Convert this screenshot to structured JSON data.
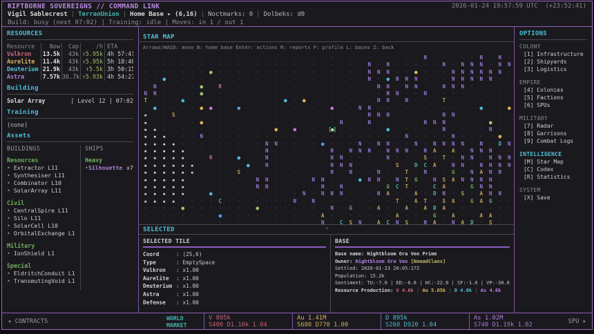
{
  "meta": {
    "title": "RIFTBORNE SOVEREIGNS // COMMAND LINK",
    "clock": "2026-01-24 19:57:59 UTC",
    "offset": "(+23:52:41)",
    "sep": "|"
  },
  "status": {
    "player": "Vigil Sablecrest",
    "faction": "TerranUnion",
    "location": "Home Base ▸ (6,16)",
    "noctmarks": "Noctmarks: 0",
    "dolbeks": "Dolbeks: d0",
    "line3": "Build: busy (next 07:02) | Training: idle | Moves: in 1 / out 1"
  },
  "resources": {
    "title": "RESOURCES",
    "headers": {
      "name": "Resource",
      "now": "Now",
      "cap": "Cap",
      "rate": "/h",
      "eta": "ETA"
    },
    "rows": [
      {
        "name": "Vulkron",
        "now": "13.5k",
        "cap": "43k",
        "rate": "↑5.95k",
        "eta": "4h 57:41",
        "color": "#c9687a"
      },
      {
        "name": "Aurelite",
        "now": "11.4k",
        "cap": "43k",
        "rate": "↑5.95k",
        "eta": "5h 18:40",
        "color": "#d7b45f"
      },
      {
        "name": "Deuterium",
        "now": "21.9k",
        "cap": "43k",
        "rate": "↑5.5k",
        "eta": "3h 50:15",
        "color": "#55bcd9"
      },
      {
        "name": "Astra",
        "now": "7.57k",
        "cap": "36.7k",
        "rate": "↑5.93k",
        "eta": "4h 54:27",
        "color": "#b27fe0"
      }
    ]
  },
  "building": {
    "title": "Building",
    "name": "Solar Array",
    "info": "| Level 12 | 07:02"
  },
  "training": {
    "title": "Training",
    "entry": "(none)"
  },
  "assets": {
    "title": "Assets",
    "buildings": {
      "title": "BUILDINGS",
      "groups": [
        {
          "name": "Resources",
          "items": [
            "Extractor L11",
            "Synthesiser L11",
            "Combinator L10",
            "SolarArray L11"
          ]
        },
        {
          "name": "Civil",
          "items": [
            "CentralSpire L11",
            "Silo L11",
            "SolarCell L10",
            "OrbitalExchange L1"
          ]
        },
        {
          "name": "Military",
          "items": [
            "IonShield L1"
          ]
        },
        {
          "name": "Special",
          "items": [
            "EldritchConduit L1",
            "TransmutingVoid L1"
          ]
        }
      ]
    },
    "ships": {
      "title": "SHIPS",
      "groups": [
        {
          "name": "Heavy",
          "items": [
            {
              "name": "Silhouette",
              "count": "x7"
            }
          ]
        }
      ]
    }
  },
  "starmap": {
    "title": "STAR MAP",
    "help": "Arrows/WASD: move  B: home base  Enter: actions  R: reports  P: profile  L: bases  Z: back",
    "rows": [
      "....................`.........N.....N.N.",
      "........................N.N.....N.NNN.NN.",
      ".......g................NNN..y...NNNNNN.N.",
      "..o.....................N.oNNN...NNNNN....",
      ".N....g.R................NN.NN..NNN.......",
      "NN....g...................NN..N...........",
      "T...o..........o.y.......NN.N...T.........",
      ".o....yp..b.........p..NN...........o..y",
      "#..S....................NNN.....NN........",
      "#.....y..............N..N.....NNN....g..",
      "##............y.p...X.....o.....N....N..",
      "###...N.....................N....N....y",
      "####.........NN....b...N.NN..N.NNNN.N.DN",
      "#####........N......N.NNN.NNN.NA.A.NNN",
      "#####..R..o..N......NN....N...S.T.NN.NNN",
      "######.....o.N......NNN....S.DCA.NN.NNNN",
      "######....S.........N.N..N..T.N..G.NANN.",
      "#####.......NN....NN...oNN.NTG.NSANNNN.",
      "#####.......NN.....N.N....GCT..CA..GNN.",
      "#####..o.........N.NNN...NA..A.DN.S.ANN.",
      "####....C.......N.N........T.AT.SA.GAG..",
      "....g.......g.......N.G..A..A.ADA...",
      "........b..........A.......A...G.A..AA..",
      "...................N.CSN.ACNS.NA.NAD.S.."
    ],
    "legend": {
      ".": {
        "ch": "·",
        "color": "#3c3c46"
      },
      "`": {
        "ch": "·",
        "color": "#55555f"
      },
      "N": {
        "ch": "N",
        "color": "#9b79d6"
      },
      "R": {
        "ch": "R",
        "color": "#c4707e"
      },
      "T": {
        "ch": "T",
        "color": "#c3a35f"
      },
      "S": {
        "ch": "S",
        "color": "#c3a35f"
      },
      "A": {
        "ch": "A",
        "color": "#c3a35f"
      },
      "C": {
        "ch": "C",
        "color": "#52b8ae"
      },
      "D": {
        "ch": "D",
        "color": "#52b8ae"
      },
      "G": {
        "ch": "G",
        "color": "#6fae5f"
      },
      "#": {
        "ch": "▪",
        "color": "#d6d6d8"
      },
      "o": {
        "ch": "●",
        "color": "#4db8d8"
      },
      "g": {
        "ch": "●",
        "color": "#9ac873"
      },
      "y": {
        "ch": "●",
        "color": "#e0b359"
      },
      "p": {
        "ch": "●",
        "color": "#c873d8"
      },
      "b": {
        "ch": "●",
        "color": "#5b9be0"
      },
      "X": {
        "ch": "●",
        "color": "#cde07a",
        "brackets": "#4fc6c0"
      }
    }
  },
  "selected": {
    "title": "SELECTED",
    "spinner": "*",
    "tile": {
      "title": "SELECTED TILE",
      "fields": [
        {
          "k": "Coord",
          "v": ": (25,6)"
        },
        {
          "k": "Type",
          "v": ": EmptySpace"
        },
        {
          "k": "Vulkron",
          "v": ": x1.00"
        },
        {
          "k": "Aurelite",
          "v": ": x1.00"
        },
        {
          "k": "Deuterium",
          "v": ": x1.00"
        },
        {
          "k": "Astra",
          "v": ": x1.00"
        },
        {
          "k": "Defense",
          "v": ": x1.00"
        }
      ]
    },
    "base": {
      "title": "BASE",
      "name_label": "Base name:",
      "name": "Nightbloom Ora Ven Prime",
      "owner_label": "Owner:",
      "owner": "Nightbloom Ora Ven",
      "clan": "[NomadClans]",
      "settled": "Settled: 2026-01-23 20:05:17Z",
      "population": "Population: 15.2k",
      "sentiment": "Sentiment: TU:-7.0 | ED:-6.6 | HC:-22.0 | SF:-1.0 | VP:-30.0",
      "production_label": "Resource Production:",
      "production": [
        {
          "t": "V 4.6k",
          "color": "#c9687a"
        },
        {
          "t": "Au 5.05k",
          "color": "#d7b45f"
        },
        {
          "t": "D 4.6k",
          "color": "#55bcd9"
        },
        {
          "t": "As 4.6k",
          "color": "#b27fe0"
        }
      ]
    }
  },
  "options": {
    "title": "OPTIONS",
    "groups": [
      {
        "name": "COLONY",
        "accent": false,
        "items": [
          {
            "key": "[1]",
            "label": "Infrastructure"
          },
          {
            "key": "[2]",
            "label": "Shipyards"
          },
          {
            "key": "[3]",
            "label": "Logistics"
          }
        ]
      },
      {
        "name": "EMPIRE",
        "accent": false,
        "items": [
          {
            "key": "[4]",
            "label": "Colonies"
          },
          {
            "key": "[5]",
            "label": "Factions"
          },
          {
            "key": "[6]",
            "label": "SPUs"
          }
        ]
      },
      {
        "name": "MILITARY",
        "accent": false,
        "items": [
          {
            "key": "[7]",
            "label": "Radar"
          },
          {
            "key": "[8]",
            "label": "Garrisons"
          },
          {
            "key": "[9]",
            "label": "Combat Logs"
          }
        ]
      },
      {
        "name": "INTELLIGENCE",
        "accent": true,
        "items": [
          {
            "key": "[M]",
            "label": "Star Map"
          },
          {
            "key": "[C]",
            "label": "Codex"
          },
          {
            "key": "[R]",
            "label": "Statistics"
          }
        ]
      },
      {
        "name": "SYSTEM",
        "accent": false,
        "items": [
          {
            "key": "[X]",
            "label": "Save"
          }
        ]
      }
    ]
  },
  "footer": {
    "contracts": "◂ CONTRACTS",
    "market1": "WORLD",
    "market2": "MARKET",
    "quotes": [
      {
        "l1": "V 895k",
        "l2": "S400 D1.10k 1.04",
        "color": "#c9687a"
      },
      {
        "l1": "Au 1.41M",
        "l2": "S680 D770 1.00",
        "color": "#d7b45f"
      },
      {
        "l1": "D 895k",
        "l2": "S260 D920 1.04",
        "color": "#55bcd9"
      },
      {
        "l1": "As 1.02M",
        "l2": "S740 D1.19k 1.02",
        "color": "#b27fe0"
      }
    ],
    "spu": "SPU ▸"
  }
}
